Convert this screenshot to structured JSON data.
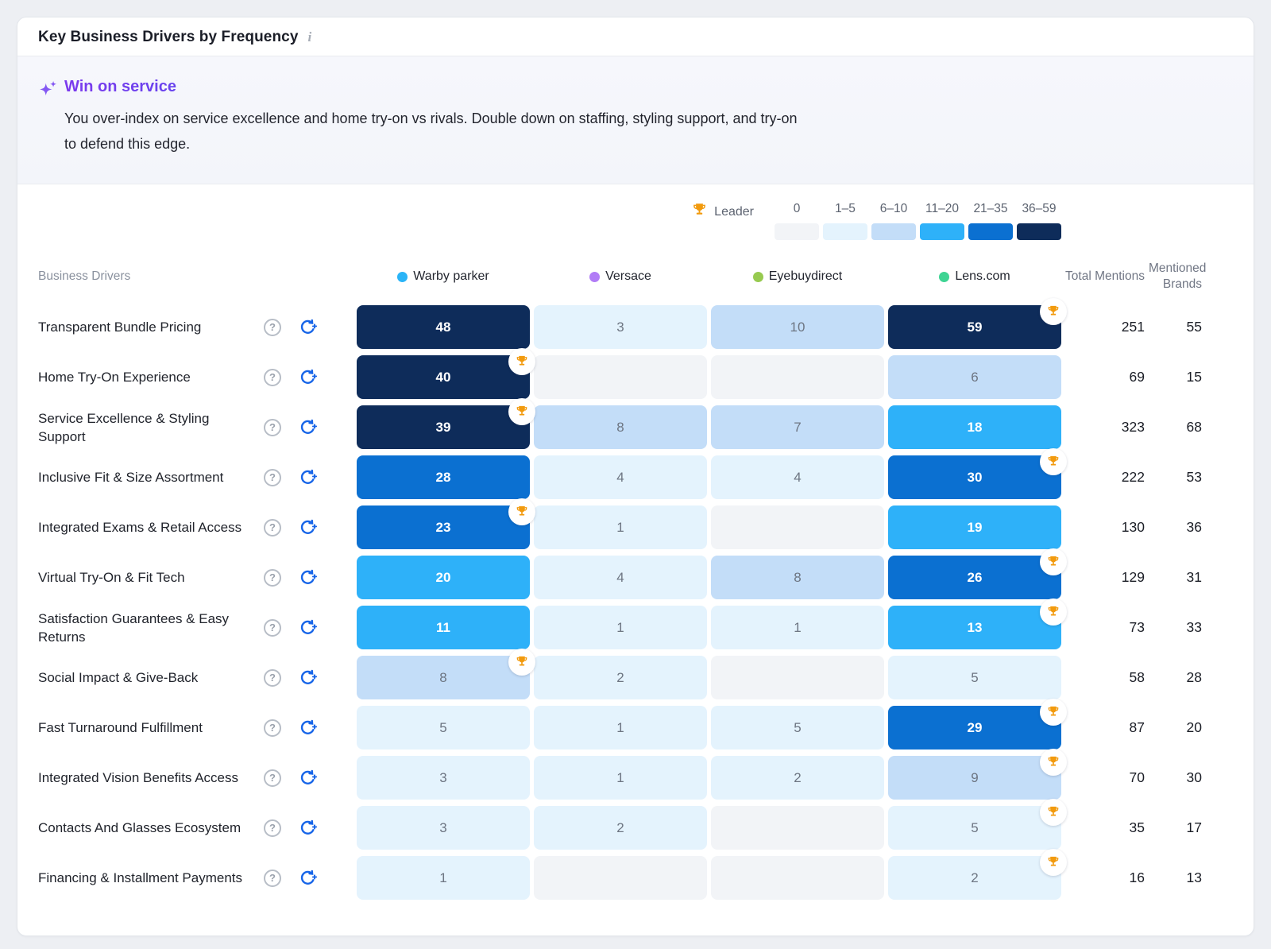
{
  "header": {
    "title": "Key Business Drivers by Frequency",
    "info_icon": "i"
  },
  "insight": {
    "icon": "sparkles-icon",
    "title": "Win on service",
    "body": "You over-index on service excellence and home try-on vs rivals. Double down on staffing, styling support, and try-on to defend this edge."
  },
  "legend": {
    "leader_icon": "trophy-icon",
    "leader_label": "Leader",
    "buckets": [
      {
        "label": "0",
        "color": "#f2f4f7",
        "max": 0
      },
      {
        "label": "1–5",
        "color": "#e4f3fd",
        "max": 5
      },
      {
        "label": "6–10",
        "color": "#c3ddf8",
        "max": 10
      },
      {
        "label": "11–20",
        "color": "#2eb1f9",
        "max": 20
      },
      {
        "label": "21–35",
        "color": "#0b70d1",
        "max": 35
      },
      {
        "label": "36–59",
        "color": "#0e2c5a",
        "max": 59
      }
    ]
  },
  "table": {
    "drivers_header": "Business Drivers",
    "total_header": "Total Mentions",
    "brands_header": "Mentioned Brands",
    "brands": [
      {
        "name": "Warby parker",
        "dot_color": "#2ab4f7"
      },
      {
        "name": "Versace",
        "dot_color": "#b17cf6"
      },
      {
        "name": "Eyebuydirect",
        "dot_color": "#97ca50"
      },
      {
        "name": "Lens.com",
        "dot_color": "#3ed493"
      }
    ]
  },
  "chart_data": {
    "type": "heatmap",
    "title": "Key Business Drivers by Frequency",
    "categories": [
      "Transparent Bundle Pricing",
      "Home Try-On Experience",
      "Service Excellence & Styling Support",
      "Inclusive Fit & Size Assortment",
      "Integrated Exams & Retail Access",
      "Virtual Try-On & Fit Tech",
      "Satisfaction Guarantees & Easy Returns",
      "Social Impact & Give-Back",
      "Fast Turnaround Fulfillment",
      "Integrated Vision Benefits Access",
      "Contacts And Glasses Ecosystem",
      "Financing & Installment Payments"
    ],
    "series": [
      {
        "name": "Warby parker",
        "values": [
          48,
          40,
          39,
          28,
          23,
          20,
          11,
          8,
          5,
          3,
          3,
          1
        ]
      },
      {
        "name": "Versace",
        "values": [
          3,
          0,
          8,
          4,
          1,
          4,
          1,
          2,
          1,
          1,
          2,
          0
        ]
      },
      {
        "name": "Eyebuydirect",
        "values": [
          10,
          0,
          7,
          4,
          0,
          8,
          1,
          0,
          5,
          2,
          0,
          0
        ]
      },
      {
        "name": "Lens.com",
        "values": [
          59,
          6,
          18,
          30,
          19,
          26,
          13,
          5,
          29,
          9,
          5,
          2
        ]
      }
    ],
    "leaders": [
      "Lens.com",
      "Warby parker",
      "Warby parker",
      "Lens.com",
      "Warby parker",
      "Lens.com",
      "Lens.com",
      "Warby parker",
      "Lens.com",
      "Lens.com",
      "Lens.com",
      "Lens.com"
    ],
    "total_mentions": [
      251,
      69,
      323,
      222,
      130,
      129,
      73,
      58,
      87,
      70,
      35,
      16
    ],
    "mentioned_brands": [
      55,
      15,
      68,
      53,
      36,
      31,
      33,
      28,
      20,
      30,
      17,
      13
    ],
    "value_buckets": [
      "0",
      "1–5",
      "6–10",
      "11–20",
      "21–35",
      "36–59"
    ],
    "legend_position": "top-right",
    "grid": false
  }
}
